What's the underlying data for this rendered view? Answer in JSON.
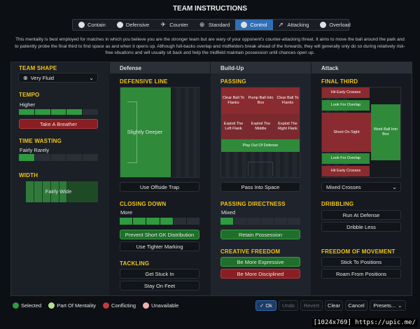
{
  "title": "TEAM INSTRUCTIONS",
  "tabs": [
    {
      "label": "Contain",
      "icon": "contain-icon",
      "active": false
    },
    {
      "label": "Defensive",
      "icon": "defensive-icon",
      "active": false
    },
    {
      "label": "Counter",
      "icon": "counter-icon",
      "active": false
    },
    {
      "label": "Standard",
      "icon": "standard-icon",
      "active": false
    },
    {
      "label": "Control",
      "icon": "control-icon",
      "active": true
    },
    {
      "label": "Attacking",
      "icon": "attacking-icon",
      "active": false
    },
    {
      "label": "Overload",
      "icon": "overload-icon",
      "active": false
    }
  ],
  "description": "This mentality is best employed for matches in which you believe you are the stronger team but are wary of your opponent's counter-attacking threat. It aims to move the ball around the park and to patiently probe the final third to find space as and when it opens up. Although full-backs overlap and midfielders break ahead of the forwards, they will generally only do so during relatively risk-free situations and will usually sit back and help the midfield maintain possession until chances open up.",
  "left": {
    "team_shape_label": "TEAM SHAPE",
    "team_shape_value": "Very Fluid",
    "tempo_label": "TEMPO",
    "tempo_value": "Higher",
    "tempo_level": 4,
    "tempo_segments": 5,
    "tempo_button": "Take A Breather",
    "time_wasting_label": "TIME WASTING",
    "time_wasting_value": "Fairly Rarely",
    "time_wasting_level": 1,
    "time_wasting_segments": 5,
    "width_label": "WIDTH",
    "width_value": "Fairly Wide"
  },
  "defense": {
    "header": "Defense",
    "defensive_line_label": "DEFENSIVE LINE",
    "defensive_line_value": "Slightly Deeper",
    "offside_button": "Use Offside Trap",
    "closing_down_label": "CLOSING DOWN",
    "closing_down_value": "More",
    "closing_level": 4,
    "closing_segments": 6,
    "prevent_gk_button": "Prevent Short GK Distribution",
    "tighter_marking_button": "Use Tighter Marking",
    "tackling_label": "TACKLING",
    "get_stuck_in_button": "Get Stuck In",
    "stay_on_feet_button": "Stay On Feet"
  },
  "buildup": {
    "header": "Build-Up",
    "passing_label": "PASSING",
    "pitch_cells": {
      "clear_left": "Clear Ball To Flanks",
      "pump": "Pump Ball Into Box",
      "clear_right": "Clear Ball To Flanks",
      "exploit_left": "Exploit The Left Flank",
      "exploit_middle": "Exploit The Middle",
      "exploit_right": "Exploit The Right Flank",
      "play_out": "Play Out Of Defense"
    },
    "pass_into_space_button": "Pass Into Space",
    "directness_label": "PASSING DIRECTNESS",
    "directness_value": "Mixed",
    "directness_level": 1,
    "directness_segments": 6,
    "retain_button": "Retain Possession",
    "creative_label": "CREATIVE FREEDOM",
    "expressive_button": "Be More Expressive",
    "disciplined_button": "Be More Disciplined"
  },
  "attack": {
    "header": "Attack",
    "final_third_label": "FINAL THIRD",
    "pitch_cells": {
      "early_top": "Hit Early Crosses",
      "overlap_top": "Look For Overlap",
      "shoot": "Shoot On Sight",
      "work_box": "Work Ball Into Box",
      "overlap_bottom": "Look For Overlap",
      "early_bottom": "Hit Early Crosses"
    },
    "crosses_value": "Mixed Crosses",
    "dribbling_label": "DRIBBLING",
    "run_at_defense_button": "Run At Defense",
    "dribble_less_button": "Dribble Less",
    "freedom_label": "FREEDOM OF MOVEMENT",
    "stick_button": "Stick To Positions",
    "roam_button": "Roam From Positions"
  },
  "legend": [
    {
      "label": "Selected",
      "color": "#2f9a3f"
    },
    {
      "label": "Part Of Mentality",
      "color": "#b6e08a"
    },
    {
      "label": "Conflicting",
      "color": "#c23b3b"
    },
    {
      "label": "Unavailable",
      "color": "#f0b0b0"
    }
  ],
  "footer": {
    "ok": "Ok",
    "undo": "Undo",
    "revert": "Revert",
    "clear": "Clear",
    "cancel": "Cancel",
    "presets": "Presets..."
  },
  "watermark": "[1024x769] https://upic.me/",
  "colors": {
    "accent": "#2f6fb5",
    "selected": "#2f9a3f",
    "conflict": "#8a1e22",
    "label": "#f0c419"
  }
}
